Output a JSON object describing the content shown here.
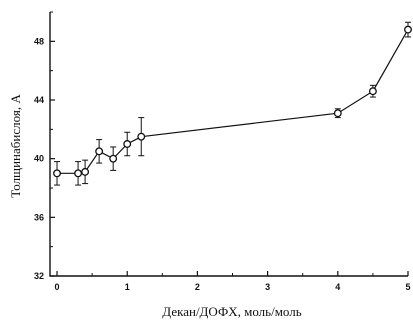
{
  "chart_data": {
    "type": "scatter",
    "title": "",
    "xlabel": "Декан/ДОФХ, моль/моль",
    "ylabel": "Толщинабислоя, А",
    "xlim": [
      -0.1,
      5.0
    ],
    "ylim": [
      32,
      50
    ],
    "xticks": [
      0,
      1,
      2,
      3,
      4,
      5
    ],
    "yticks": [
      32,
      36,
      40,
      44,
      48
    ],
    "grid": false,
    "legend": "none",
    "line_color": "#111111",
    "marker": "open-circle",
    "series": [
      {
        "x": [
          0,
          0.3,
          0.4,
          0.6,
          0.8,
          1.0,
          1.2,
          4.0,
          4.5,
          5.0
        ],
        "y": [
          39.0,
          39.0,
          39.1,
          40.5,
          40.0,
          41.0,
          41.5,
          43.1,
          44.6,
          48.8
        ],
        "err": [
          0.8,
          0.8,
          0.8,
          0.8,
          0.8,
          0.8,
          1.3,
          0.3,
          0.4,
          0.5
        ]
      }
    ]
  }
}
